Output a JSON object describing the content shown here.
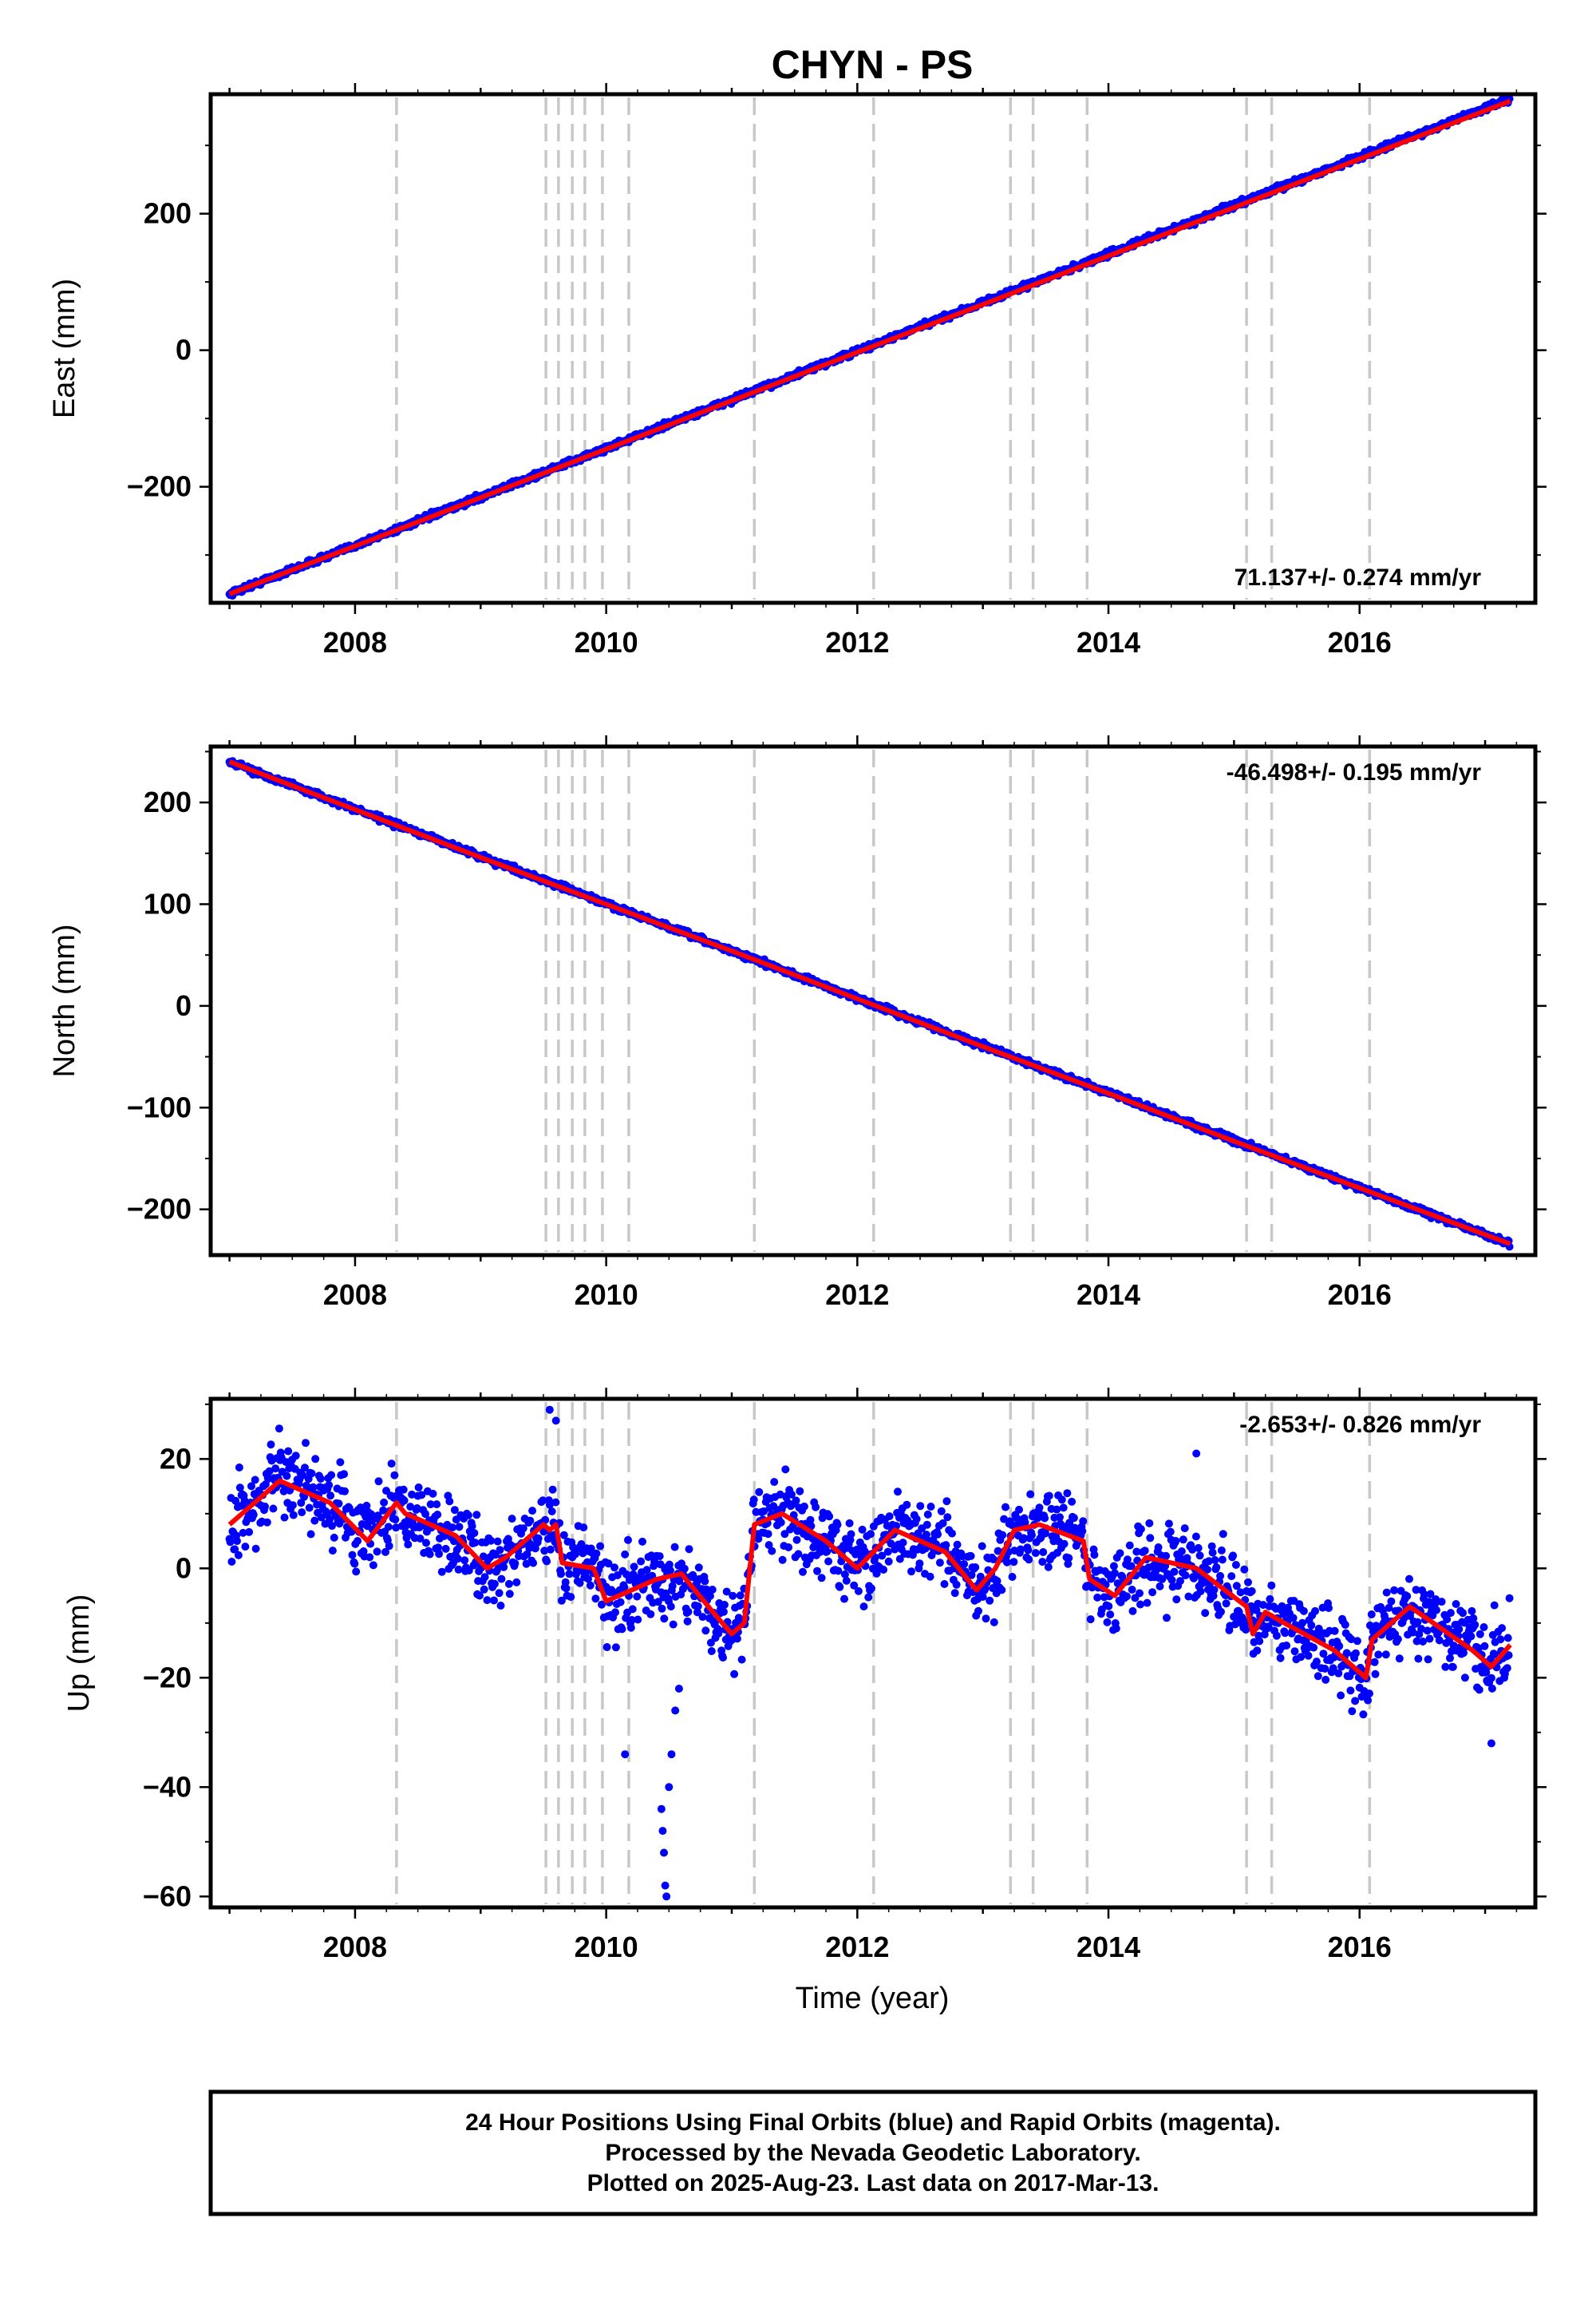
{
  "title": "CHYN - PS",
  "colors": {
    "points": "#0000ff",
    "model": "#ff0000",
    "steps": "#c8c8c8",
    "frame": "#000000"
  },
  "chart_data": [
    {
      "type": "scatter",
      "component": "east",
      "ylabel": "East (mm)",
      "xlim": [
        2006.85,
        2017.4
      ],
      "ylim": [
        -370,
        375
      ],
      "yticks_labeled": [
        -200,
        0,
        200
      ],
      "yticks_minor": [
        -300,
        -100,
        100,
        300
      ],
      "xticks": [
        "2008",
        "2010",
        "2012",
        "2014",
        "2016"
      ],
      "rate_label": "71.137+/- 0.274 mm/yr",
      "rate_position": "bottom-right",
      "model": [
        [
          2007.0,
          -357
        ],
        [
          2008.0,
          -287
        ],
        [
          2009.0,
          -216
        ],
        [
          2010.0,
          -145
        ],
        [
          2011.0,
          -74
        ],
        [
          2012.0,
          -3
        ],
        [
          2013.0,
          67
        ],
        [
          2014.0,
          138
        ],
        [
          2015.0,
          209
        ],
        [
          2016.0,
          280
        ],
        [
          2017.2,
          365
        ]
      ],
      "trend": {
        "start": [
          2007.0,
          -357
        ],
        "slope": 71.137,
        "scatter_mm": 3
      },
      "x_start": 2007.0,
      "x_end": 2017.2
    },
    {
      "type": "scatter",
      "component": "north",
      "ylabel": "North (mm)",
      "xlim": [
        2006.85,
        2017.4
      ],
      "ylim": [
        -245,
        255
      ],
      "yticks_labeled": [
        -200,
        -100,
        0,
        100,
        200
      ],
      "yticks_minor": [
        -150,
        -50,
        50,
        150,
        250
      ],
      "xticks": [
        "2008",
        "2010",
        "2012",
        "2014",
        "2016"
      ],
      "rate_label": "-46.498+/- 0.195 mm/yr",
      "rate_position": "top-right",
      "model": [
        [
          2007.0,
          240
        ],
        [
          2008.0,
          193
        ],
        [
          2009.0,
          146
        ],
        [
          2010.0,
          100
        ],
        [
          2011.0,
          54
        ],
        [
          2012.0,
          7
        ],
        [
          2013.0,
          -40
        ],
        [
          2014.0,
          -86
        ],
        [
          2015.0,
          -133
        ],
        [
          2016.0,
          -179
        ],
        [
          2017.2,
          -234
        ]
      ],
      "trend": {
        "start": [
          2007.0,
          240
        ],
        "slope": -46.498,
        "scatter_mm": 2
      },
      "x_start": 2007.0,
      "x_end": 2017.2
    },
    {
      "type": "scatter",
      "component": "up",
      "ylabel": "Up (mm)",
      "xlabel": "Time (year)",
      "xlim": [
        2006.85,
        2017.4
      ],
      "ylim": [
        -62,
        31
      ],
      "yticks_labeled": [
        -60,
        -40,
        -20,
        0,
        20
      ],
      "yticks_minor": [
        -50,
        -30,
        -10,
        10,
        30
      ],
      "xticks": [
        "2008",
        "2010",
        "2012",
        "2014",
        "2016"
      ],
      "rate_label": "-2.653+/- 0.826 mm/yr",
      "rate_position": "top-right",
      "model": [
        [
          2007.0,
          8
        ],
        [
          2007.4,
          16
        ],
        [
          2007.8,
          12
        ],
        [
          2008.1,
          5
        ],
        [
          2008.33,
          12
        ],
        [
          2008.4,
          10
        ],
        [
          2008.8,
          6
        ],
        [
          2009.05,
          0
        ],
        [
          2009.2,
          2
        ],
        [
          2009.5,
          8
        ],
        [
          2009.55,
          7
        ],
        [
          2009.6,
          8
        ],
        [
          2009.65,
          1
        ],
        [
          2009.9,
          0
        ],
        [
          2010.0,
          -6
        ],
        [
          2010.2,
          -4
        ],
        [
          2010.4,
          -2
        ],
        [
          2010.6,
          -1
        ],
        [
          2010.85,
          -8
        ],
        [
          2011.0,
          -12
        ],
        [
          2011.1,
          -10
        ],
        [
          2011.18,
          8
        ],
        [
          2011.4,
          10
        ],
        [
          2011.75,
          5
        ],
        [
          2012.0,
          0
        ],
        [
          2012.3,
          7
        ],
        [
          2012.7,
          3
        ],
        [
          2012.95,
          -4
        ],
        [
          2013.1,
          0
        ],
        [
          2013.25,
          7
        ],
        [
          2013.45,
          8
        ],
        [
          2013.8,
          5
        ],
        [
          2013.85,
          -2
        ],
        [
          2014.05,
          -5
        ],
        [
          2014.3,
          2
        ],
        [
          2014.7,
          0
        ],
        [
          2015.1,
          -7
        ],
        [
          2015.15,
          -12
        ],
        [
          2015.25,
          -8
        ],
        [
          2015.4,
          -10
        ],
        [
          2015.8,
          -15
        ],
        [
          2016.05,
          -20
        ],
        [
          2016.1,
          -13
        ],
        [
          2016.4,
          -7
        ],
        [
          2016.9,
          -15
        ],
        [
          2017.05,
          -18
        ],
        [
          2017.2,
          -14
        ]
      ],
      "noise_mm": 5,
      "outliers": [
        [
          2010.48,
          -60
        ],
        [
          2010.47,
          -58
        ],
        [
          2010.45,
          -48
        ],
        [
          2010.44,
          -44
        ],
        [
          2010.46,
          -52
        ],
        [
          2010.5,
          -40
        ],
        [
          2010.52,
          -34
        ],
        [
          2010.55,
          -26
        ],
        [
          2010.58,
          -22
        ],
        [
          2010.15,
          -34
        ],
        [
          2009.55,
          29
        ],
        [
          2009.6,
          27
        ],
        [
          2014.7,
          21
        ],
        [
          2017.05,
          -32
        ]
      ],
      "x_start": 2007.0,
      "x_end": 2017.2
    }
  ],
  "step_lines": [
    2008.33,
    2009.52,
    2009.62,
    2009.73,
    2009.83,
    2009.97,
    2010.18,
    2011.18,
    2012.13,
    2013.22,
    2013.4,
    2013.83,
    2015.1,
    2015.3,
    2016.08
  ],
  "footer": {
    "line1": "24 Hour Positions Using Final Orbits (blue) and Rapid Orbits (magenta).",
    "line2": "Processed by the Nevada Geodetic Laboratory.",
    "line3": "Plotted on 2025-Aug-23. Last data on 2017-Mar-13."
  }
}
